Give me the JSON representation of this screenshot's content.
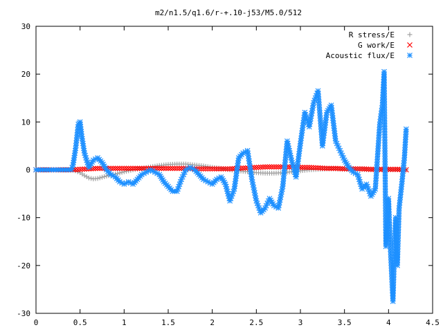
{
  "chart_data": {
    "type": "scatter",
    "title": "m2/n1.5/q1.6/r-+.10-j53/M5.0/512",
    "xlabel": "",
    "ylabel": "",
    "xlim": [
      0,
      4.5
    ],
    "ylim": [
      -30,
      30
    ],
    "xticks": [
      0,
      0.5,
      1,
      1.5,
      2,
      2.5,
      3,
      3.5,
      4,
      4.5
    ],
    "yticks": [
      -30,
      -20,
      -10,
      0,
      10,
      20,
      30
    ],
    "xtick_labels": [
      "0",
      "0.5",
      "1",
      "1.5",
      "2",
      "2.5",
      "3",
      "3.5",
      "4",
      "4.5"
    ],
    "ytick_labels": [
      "-30",
      "-20",
      "-10",
      "0",
      "10",
      "20",
      "30"
    ],
    "grid": false,
    "legend_position": "top-right",
    "series": [
      {
        "name": "R stress/E",
        "marker": "+",
        "color": "#a0a0a0",
        "x": [
          0.0,
          0.2,
          0.42,
          0.5,
          0.55,
          0.6,
          0.65,
          0.7,
          0.8,
          0.9,
          1.0,
          1.1,
          1.2,
          1.3,
          1.4,
          1.5,
          1.6,
          1.7,
          1.8,
          1.9,
          2.0,
          2.1,
          2.2,
          2.3,
          2.4,
          2.5,
          2.6,
          2.7,
          2.8,
          2.9,
          3.0,
          3.1,
          3.2,
          3.3,
          3.4,
          3.5,
          3.6,
          3.7,
          3.8,
          3.9,
          4.0,
          4.1,
          4.2
        ],
        "y": [
          0.0,
          0.0,
          0.0,
          -0.6,
          -1.2,
          -1.7,
          -1.9,
          -1.8,
          -1.3,
          -0.9,
          -0.4,
          0.0,
          0.3,
          0.6,
          0.9,
          1.1,
          1.2,
          1.2,
          1.0,
          0.8,
          0.5,
          0.3,
          0.0,
          -0.2,
          -0.4,
          -0.6,
          -0.7,
          -0.7,
          -0.6,
          -0.4,
          -0.2,
          0.0,
          0.1,
          0.2,
          0.2,
          0.1,
          0.1,
          0.1,
          0.0,
          0.0,
          0.0,
          0.0,
          0.0
        ]
      },
      {
        "name": "G work/E",
        "marker": "x",
        "color": "#ff0000",
        "x": [
          0.0,
          0.2,
          0.42,
          0.5,
          0.6,
          0.7,
          0.8,
          0.9,
          1.0,
          1.1,
          1.2,
          1.3,
          1.4,
          1.5,
          1.6,
          1.7,
          1.8,
          1.9,
          2.0,
          2.1,
          2.2,
          2.3,
          2.4,
          2.5,
          2.6,
          2.7,
          2.8,
          2.9,
          3.0,
          3.1,
          3.2,
          3.3,
          3.4,
          3.5,
          3.6,
          3.7,
          3.8,
          3.9,
          4.0,
          4.1,
          4.2
        ],
        "y": [
          0.0,
          0.0,
          0.0,
          0.1,
          0.2,
          0.3,
          0.3,
          0.3,
          0.3,
          0.3,
          0.3,
          0.3,
          0.3,
          0.3,
          0.3,
          0.3,
          0.2,
          0.2,
          0.2,
          0.2,
          0.2,
          0.3,
          0.4,
          0.5,
          0.6,
          0.6,
          0.6,
          0.6,
          0.5,
          0.5,
          0.4,
          0.3,
          0.3,
          0.2,
          0.2,
          0.2,
          0.1,
          0.1,
          0.1,
          0.1,
          0.0
        ]
      },
      {
        "name": "Acoustic flux/E",
        "marker": "*",
        "color": "#1e90ff",
        "x": [
          0.0,
          0.1,
          0.2,
          0.3,
          0.4,
          0.42,
          0.45,
          0.48,
          0.5,
          0.52,
          0.55,
          0.6,
          0.65,
          0.7,
          0.75,
          0.8,
          0.85,
          0.9,
          0.95,
          1.0,
          1.05,
          1.1,
          1.15,
          1.2,
          1.25,
          1.3,
          1.35,
          1.4,
          1.45,
          1.5,
          1.55,
          1.6,
          1.65,
          1.7,
          1.75,
          1.8,
          1.85,
          1.9,
          1.95,
          2.0,
          2.05,
          2.1,
          2.15,
          2.2,
          2.25,
          2.3,
          2.35,
          2.4,
          2.45,
          2.5,
          2.55,
          2.6,
          2.65,
          2.7,
          2.75,
          2.8,
          2.85,
          2.9,
          2.95,
          3.0,
          3.05,
          3.1,
          3.15,
          3.2,
          3.25,
          3.3,
          3.35,
          3.4,
          3.45,
          3.5,
          3.55,
          3.6,
          3.65,
          3.7,
          3.75,
          3.8,
          3.85,
          3.9,
          3.93,
          3.95,
          3.97,
          4.0,
          4.02,
          4.05,
          4.08,
          4.1,
          4.12,
          4.15,
          4.18,
          4.2
        ],
        "y": [
          0.0,
          0.0,
          0.0,
          0.0,
          0.0,
          1.0,
          4.5,
          9.5,
          10.0,
          7.0,
          3.5,
          0.5,
          2.0,
          2.5,
          1.5,
          0.0,
          -1.0,
          -1.5,
          -2.5,
          -3.0,
          -2.5,
          -3.0,
          -2.0,
          -1.0,
          -0.5,
          0.0,
          -0.5,
          -1.0,
          -2.5,
          -3.5,
          -4.5,
          -4.5,
          -2.0,
          0.0,
          0.5,
          0.0,
          -1.0,
          -2.0,
          -2.5,
          -3.0,
          -2.0,
          -1.5,
          -3.0,
          -6.5,
          -4.0,
          2.5,
          3.5,
          4.0,
          -2.0,
          -6.5,
          -9.0,
          -8.0,
          -6.0,
          -7.5,
          -8.0,
          -3.5,
          6.0,
          2.0,
          -1.5,
          5.5,
          12.0,
          9.0,
          14.0,
          16.5,
          5.0,
          12.0,
          13.5,
          6.0,
          4.0,
          2.0,
          0.5,
          -0.5,
          -1.0,
          -4.0,
          -3.0,
          -5.5,
          -4.0,
          9.5,
          13.5,
          20.5,
          -16.0,
          -6.0,
          -16.0,
          -27.5,
          -10.0,
          -20.0,
          -8.0,
          -3.0,
          2.5,
          8.5
        ]
      }
    ]
  }
}
